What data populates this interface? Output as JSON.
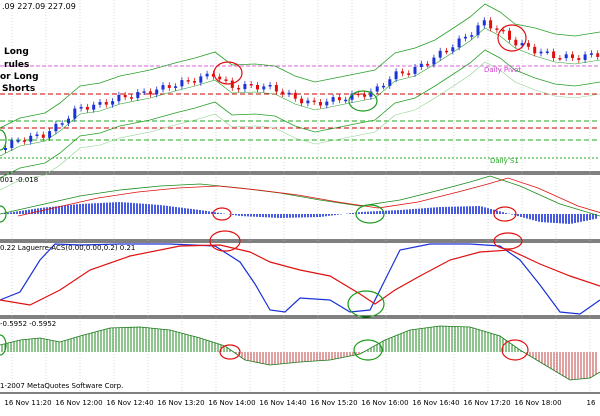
{
  "header": {
    "price_info": ".09 227.09 227.09"
  },
  "notes": {
    "lines": [
      "Long",
      "rules",
      "or Long",
      "Shorts"
    ]
  },
  "levels": {
    "daily_pivot": "Daily Pivot",
    "daily_s1": "Daily S1"
  },
  "indicator1": {
    "title": "001 -0.018"
  },
  "indicator2": {
    "title": "0.22 Laguerre-ACS(0.00,0.00,0.2) 0.21"
  },
  "indicator3": {
    "title": "-0.5952 -0.5952"
  },
  "copyright": "1-2007 MetaQuotes Software Corp.",
  "time_axis": [
    "16 Nov 11:20",
    "16 Nov 12:00",
    "16 Nov 12:40",
    "16 Nov 13:20",
    "16 Nov 14:00",
    "16 Nov 14:40",
    "16 Nov 15:20",
    "16 Nov 16:00",
    "16 Nov 16:40",
    "16 Nov 17:20",
    "16 Nov 18:00",
    "16"
  ],
  "colors": {
    "bull": "#1a32d8",
    "bear": "#e01010",
    "band": "#2aa02a",
    "marker_red": "#e01010",
    "marker_green": "#1a9a1a",
    "pivot": "#e060e0",
    "level_red": "#cc0000",
    "level_green": "#22aa22"
  }
}
